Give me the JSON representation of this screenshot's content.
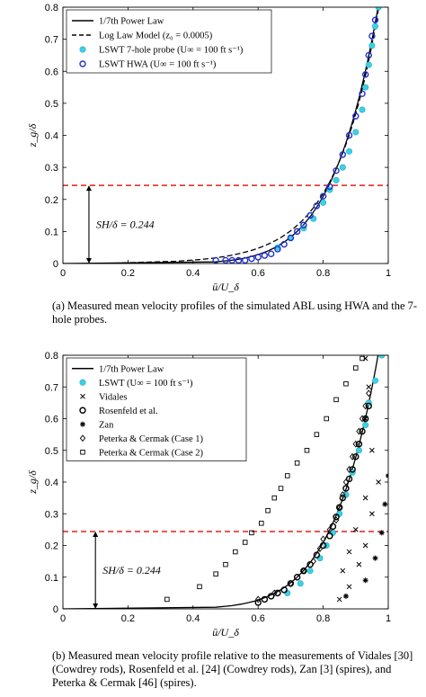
{
  "chart_data": [
    {
      "type": "line",
      "xlabel": "ū/U_δ",
      "ylabel": "z_g/δ",
      "xlim": [
        0,
        1
      ],
      "ylim": [
        0,
        0.8
      ],
      "xticks": [
        "0",
        "0.2",
        "0.4",
        "0.6",
        "0.8",
        "1"
      ],
      "yticks": [
        "0",
        "0.1",
        "0.2",
        "0.3",
        "0.4",
        "0.5",
        "0.6",
        "0.7",
        "0.8"
      ],
      "grid": false,
      "legend_position": "top-left",
      "hline": {
        "y": 0.244,
        "color": "#e0201b",
        "style": "dashed"
      },
      "annotation": {
        "text": "SH/δ = 0.244",
        "x": 0.08,
        "y1": 0,
        "y2": 0.244
      },
      "series": [
        {
          "name": "1/7th Power Law",
          "kind": "line",
          "color": "#000000",
          "dash": "solid",
          "curve": "power",
          "exponent": 7
        },
        {
          "name": "Log Law Model (z₀ = 0.0005)",
          "kind": "line",
          "color": "#000000",
          "dash": "dashed",
          "curve": "loglaw",
          "z0": 0.0005
        },
        {
          "name": "LSWT 7-hole probe (U∞ = 100 ft s⁻¹)",
          "kind": "scatter",
          "marker": "filled-circle",
          "color": "#3cd2e6",
          "points": [
            [
              0.66,
              0.05
            ],
            [
              0.7,
              0.08
            ],
            [
              0.74,
              0.11
            ],
            [
              0.77,
              0.14
            ],
            [
              0.8,
              0.19
            ],
            [
              0.82,
              0.23
            ],
            [
              0.84,
              0.26
            ],
            [
              0.86,
              0.3
            ],
            [
              0.88,
              0.35
            ],
            [
              0.9,
              0.41
            ],
            [
              0.92,
              0.48
            ],
            [
              0.93,
              0.55
            ],
            [
              0.94,
              0.62
            ],
            [
              0.95,
              0.68
            ],
            [
              0.96,
              0.74
            ],
            [
              0.97,
              0.8
            ]
          ]
        },
        {
          "name": "LSWT HWA (U∞ = 100 ft s⁻¹)",
          "kind": "scatter",
          "marker": "open-circle",
          "color": "#1f2fd0",
          "points": [
            [
              0.47,
              0.01
            ],
            [
              0.5,
              0.01
            ],
            [
              0.52,
              0.01
            ],
            [
              0.54,
              0.01
            ],
            [
              0.56,
              0.01
            ],
            [
              0.58,
              0.015
            ],
            [
              0.6,
              0.02
            ],
            [
              0.62,
              0.025
            ],
            [
              0.64,
              0.03
            ],
            [
              0.66,
              0.045
            ],
            [
              0.68,
              0.06
            ],
            [
              0.7,
              0.08
            ],
            [
              0.72,
              0.1
            ],
            [
              0.74,
              0.12
            ],
            [
              0.76,
              0.15
            ],
            [
              0.78,
              0.18
            ],
            [
              0.8,
              0.21
            ],
            [
              0.82,
              0.24
            ],
            [
              0.84,
              0.29
            ],
            [
              0.86,
              0.34
            ],
            [
              0.88,
              0.4
            ],
            [
              0.9,
              0.46
            ],
            [
              0.92,
              0.53
            ],
            [
              0.93,
              0.59
            ],
            [
              0.94,
              0.65
            ],
            [
              0.95,
              0.71
            ],
            [
              0.96,
              0.76
            ]
          ]
        }
      ]
    },
    {
      "type": "scatter",
      "xlabel": "ū/U_δ",
      "ylabel": "z_g/δ",
      "xlim": [
        0,
        1
      ],
      "ylim": [
        0,
        0.8
      ],
      "xticks": [
        "0",
        "0.2",
        "0.4",
        "0.6",
        "0.8",
        "1"
      ],
      "yticks": [
        "0",
        "0.1",
        "0.2",
        "0.3",
        "0.4",
        "0.5",
        "0.6",
        "0.7",
        "0.8"
      ],
      "grid": false,
      "legend_position": "top-left",
      "hline": {
        "y": 0.244,
        "color": "#e0201b",
        "style": "dashed"
      },
      "annotation": {
        "text": "SH/δ = 0.244",
        "x": 0.1,
        "y1": 0,
        "y2": 0.244
      },
      "series": [
        {
          "name": "1/7th Power Law",
          "kind": "line",
          "color": "#000000",
          "dash": "solid",
          "curve": "power",
          "exponent": 7
        },
        {
          "name": "LSWT (U∞ = 100 ft s⁻¹)",
          "kind": "scatter",
          "marker": "filled-circle",
          "color": "#3cd2e6",
          "points": [
            [
              0.69,
              0.05
            ],
            [
              0.73,
              0.08
            ],
            [
              0.76,
              0.12
            ],
            [
              0.79,
              0.16
            ],
            [
              0.81,
              0.2
            ],
            [
              0.83,
              0.24
            ],
            [
              0.85,
              0.3
            ],
            [
              0.87,
              0.36
            ],
            [
              0.89,
              0.43
            ],
            [
              0.91,
              0.5
            ],
            [
              0.93,
              0.58
            ],
            [
              0.94,
              0.65
            ],
            [
              0.96,
              0.72
            ],
            [
              0.98,
              0.8
            ]
          ]
        },
        {
          "name": "Vidales",
          "kind": "scatter",
          "marker": "x",
          "color": "#000000",
          "points": [
            [
              0.85,
              0.03
            ],
            [
              0.88,
              0.07
            ],
            [
              0.86,
              0.12
            ],
            [
              0.91,
              0.14
            ],
            [
              0.88,
              0.18
            ],
            [
              0.93,
              0.2
            ],
            [
              0.9,
              0.25
            ],
            [
              0.95,
              0.3
            ],
            [
              0.93,
              0.35
            ],
            [
              0.97,
              0.4
            ],
            [
              0.95,
              0.5
            ],
            [
              0.93,
              0.6
            ],
            [
              0.94,
              0.7
            ],
            [
              0.93,
              0.79
            ]
          ]
        },
        {
          "name": "Rosenfeld et al.",
          "kind": "scatter",
          "marker": "open-circle",
          "color": "#000000",
          "points": [
            [
              0.6,
              0.02
            ],
            [
              0.62,
              0.03
            ],
            [
              0.64,
              0.04
            ],
            [
              0.66,
              0.05
            ],
            [
              0.68,
              0.06
            ],
            [
              0.7,
              0.08
            ],
            [
              0.72,
              0.1
            ],
            [
              0.74,
              0.12
            ],
            [
              0.76,
              0.14
            ],
            [
              0.78,
              0.17
            ],
            [
              0.8,
              0.2
            ],
            [
              0.82,
              0.23
            ],
            [
              0.83,
              0.26
            ],
            [
              0.84,
              0.29
            ],
            [
              0.85,
              0.32
            ],
            [
              0.86,
              0.35
            ],
            [
              0.87,
              0.38
            ],
            [
              0.88,
              0.41
            ],
            [
              0.89,
              0.44
            ],
            [
              0.9,
              0.48
            ],
            [
              0.91,
              0.52
            ],
            [
              0.92,
              0.56
            ],
            [
              0.93,
              0.6
            ],
            [
              0.94,
              0.64
            ]
          ]
        },
        {
          "name": "Zan",
          "kind": "scatter",
          "marker": "star",
          "color": "#000000",
          "points": [
            [
              0.87,
              0.04
            ],
            [
              0.93,
              0.09
            ],
            [
              0.96,
              0.16
            ],
            [
              0.98,
              0.24
            ],
            [
              0.99,
              0.33
            ],
            [
              1.0,
              0.42
            ],
            [
              1.01,
              0.55
            ],
            [
              1.02,
              0.7
            ]
          ]
        },
        {
          "name": "Peterka & Cermak (Case 1)",
          "kind": "scatter",
          "marker": "diamond",
          "color": "#000000",
          "points": [
            [
              0.6,
              0.03
            ],
            [
              0.65,
              0.05
            ],
            [
              0.7,
              0.08
            ],
            [
              0.74,
              0.12
            ],
            [
              0.77,
              0.15
            ],
            [
              0.79,
              0.19
            ],
            [
              0.8,
              0.22
            ],
            [
              0.82,
              0.25
            ],
            [
              0.84,
              0.28
            ],
            [
              0.85,
              0.32
            ],
            [
              0.86,
              0.36
            ],
            [
              0.87,
              0.4
            ],
            [
              0.88,
              0.44
            ],
            [
              0.89,
              0.48
            ],
            [
              0.9,
              0.52
            ],
            [
              0.91,
              0.56
            ],
            [
              0.92,
              0.6
            ],
            [
              0.93,
              0.64
            ],
            [
              0.94,
              0.68
            ]
          ]
        },
        {
          "name": "Peterka & Cermak (Case 2)",
          "kind": "scatter",
          "marker": "open-square",
          "color": "#000000",
          "points": [
            [
              0.32,
              0.03
            ],
            [
              0.42,
              0.07
            ],
            [
              0.47,
              0.11
            ],
            [
              0.5,
              0.14
            ],
            [
              0.53,
              0.18
            ],
            [
              0.56,
              0.21
            ],
            [
              0.58,
              0.24
            ],
            [
              0.61,
              0.27
            ],
            [
              0.63,
              0.31
            ],
            [
              0.65,
              0.35
            ],
            [
              0.67,
              0.38
            ],
            [
              0.69,
              0.42
            ],
            [
              0.72,
              0.46
            ],
            [
              0.75,
              0.5
            ],
            [
              0.78,
              0.55
            ],
            [
              0.81,
              0.6
            ],
            [
              0.84,
              0.66
            ],
            [
              0.87,
              0.71
            ],
            [
              0.9,
              0.76
            ],
            [
              0.92,
              0.79
            ]
          ]
        }
      ]
    }
  ],
  "captions": {
    "a": "(a) Measured mean velocity profiles of the simulated ABL using HWA and the 7-hole probes.",
    "b": "(b) Measured mean velocity profile relative to the measurements of Vidales [30] (Cowdrey rods), Rosenfeld et al. [24] (Cowdrey rods), Zan [3] (spires), and Peterka & Cermak [46] (spires)."
  }
}
